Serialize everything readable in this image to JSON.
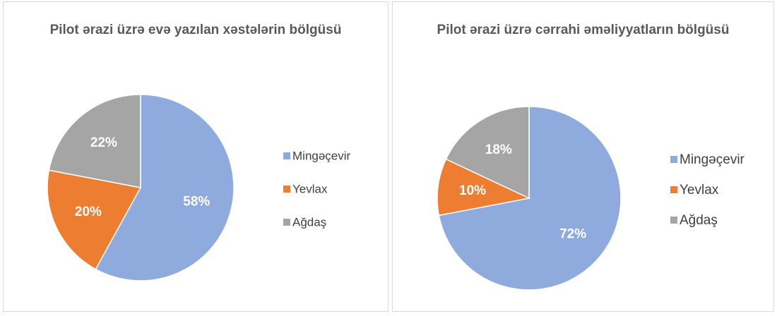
{
  "chart_data": [
    {
      "type": "pie",
      "title": "Pilot ərazi üzrə evə yazılan xəstələrin bölgüsü",
      "categories": [
        "Mingəçevir",
        "Yevlax",
        "Ağdaş"
      ],
      "values": [
        58,
        20,
        22
      ],
      "value_labels": [
        "58%",
        "20%",
        "22%"
      ],
      "colors": [
        "#8faadc",
        "#ed7d31",
        "#a5a5a5"
      ],
      "legend": "right"
    },
    {
      "type": "pie",
      "title": "Pilot ərazi üzrə cərrahi əməliyyatların bölgüsü",
      "categories": [
        "Mingəçevir",
        "Yevlax",
        "Ağdaş"
      ],
      "values": [
        72,
        10,
        18
      ],
      "value_labels": [
        "72%",
        "10%",
        "18%"
      ],
      "colors": [
        "#8faadc",
        "#ed7d31",
        "#a5a5a5"
      ],
      "legend": "right"
    }
  ]
}
